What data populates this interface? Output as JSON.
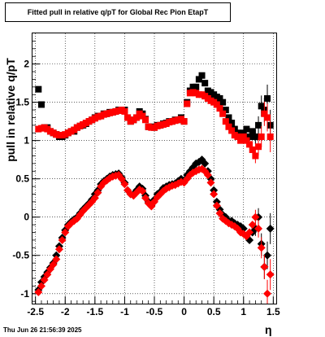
{
  "chart_data": {
    "type": "scatter",
    "title": "Fitted pull in relative q/pT for Global Rec Pion EtapT",
    "xlabel": "η",
    "ylabel": "pull in relative q/pT",
    "xlim": [
      -2.55,
      1.55
    ],
    "ylim": [
      -1.13,
      2.4
    ],
    "x_ticks": [
      "-2.5",
      "-2",
      "-1.5",
      "-1",
      "-0.5",
      "0",
      "0.5",
      "1",
      "1.5"
    ],
    "y_ticks": [
      "-1",
      "-0.5",
      "0",
      "0.5",
      "1",
      "1.5",
      "2"
    ],
    "x_tick_values": [
      -2.5,
      -2,
      -1.5,
      -1,
      -0.5,
      0,
      0.5,
      1,
      1.5
    ],
    "y_tick_values": [
      -1,
      -0.5,
      0,
      0.5,
      1,
      1.5,
      2
    ],
    "grid": true,
    "legend": "none",
    "date_stamp": "Thu Jun 26 21:56:39 2025",
    "colors": {
      "series_black": "#000000",
      "series_red": "#ff0000"
    },
    "series": [
      {
        "marker": "square",
        "color": "#000000",
        "x": [
          -2.45,
          -2.4,
          -2.35,
          -2.3,
          -2.25,
          -2.2,
          -2.15,
          -2.1,
          -2.05,
          -2.0,
          -1.95,
          -1.9,
          -1.85,
          -1.8,
          -1.75,
          -1.7,
          -1.65,
          -1.6,
          -1.55,
          -1.5,
          -1.45,
          -1.4,
          -1.35,
          -1.3,
          -1.25,
          -1.2,
          -1.15,
          -1.1,
          -1.05,
          -1.0,
          -0.95,
          -0.9,
          -0.85,
          -0.8,
          -0.75,
          -0.7,
          -0.65,
          -0.6,
          -0.55,
          -0.5,
          -0.45,
          -0.4,
          -0.35,
          -0.3,
          -0.25,
          -0.2,
          -0.15,
          -0.1,
          -0.05,
          0.0,
          0.05,
          0.1,
          0.15,
          0.2,
          0.25,
          0.3,
          0.35,
          0.4,
          0.45,
          0.5,
          0.55,
          0.6,
          0.65,
          0.7,
          0.75,
          0.8,
          0.85,
          0.9,
          0.95,
          1.0,
          1.05,
          1.1,
          1.15,
          1.2,
          1.25,
          1.3,
          1.35,
          1.4,
          1.45
        ],
        "y": [
          1.67,
          1.47,
          1.17,
          1.17,
          1.12,
          1.1,
          1.08,
          1.05,
          1.05,
          1.07,
          1.1,
          1.12,
          1.12,
          1.17,
          1.19,
          1.2,
          1.22,
          1.25,
          1.27,
          1.3,
          1.32,
          1.32,
          1.35,
          1.35,
          1.37,
          1.37,
          1.38,
          1.4,
          1.4,
          1.4,
          1.3,
          1.25,
          1.27,
          1.3,
          1.38,
          1.35,
          1.28,
          1.18,
          1.18,
          1.17,
          1.2,
          1.2,
          1.22,
          1.23,
          1.25,
          1.25,
          1.27,
          1.27,
          1.3,
          1.25,
          1.5,
          1.65,
          1.7,
          1.7,
          1.8,
          1.85,
          1.75,
          1.65,
          1.63,
          1.6,
          1.57,
          1.55,
          1.5,
          1.4,
          1.3,
          1.23,
          1.15,
          1.1,
          1.07,
          1.1,
          1.15,
          1.05,
          1.12,
          1.05,
          1.2,
          1.45,
          1.4,
          1.55,
          1.2
        ]
      },
      {
        "marker": "square",
        "color": "#ff0000",
        "x": [
          -2.45,
          -2.4,
          -2.35,
          -2.3,
          -2.25,
          -2.2,
          -2.15,
          -2.1,
          -2.05,
          -2.0,
          -1.95,
          -1.9,
          -1.85,
          -1.8,
          -1.75,
          -1.7,
          -1.65,
          -1.6,
          -1.55,
          -1.5,
          -1.45,
          -1.4,
          -1.35,
          -1.3,
          -1.25,
          -1.2,
          -1.15,
          -1.1,
          -1.05,
          -1.0,
          -0.95,
          -0.9,
          -0.85,
          -0.8,
          -0.75,
          -0.7,
          -0.65,
          -0.6,
          -0.55,
          -0.5,
          -0.45,
          -0.4,
          -0.35,
          -0.3,
          -0.25,
          -0.2,
          -0.15,
          -0.1,
          -0.05,
          0.0,
          0.05,
          0.1,
          0.15,
          0.2,
          0.25,
          0.3,
          0.35,
          0.4,
          0.45,
          0.5,
          0.55,
          0.6,
          0.65,
          0.7,
          0.75,
          0.8,
          0.85,
          0.9,
          0.95,
          1.0,
          1.05,
          1.1,
          1.15,
          1.2,
          1.25,
          1.3,
          1.35,
          1.4,
          1.45
        ],
        "y": [
          1.15,
          1.16,
          1.17,
          1.15,
          1.12,
          1.1,
          1.08,
          1.07,
          1.07,
          1.08,
          1.1,
          1.12,
          1.14,
          1.17,
          1.19,
          1.21,
          1.23,
          1.25,
          1.27,
          1.29,
          1.31,
          1.32,
          1.34,
          1.35,
          1.36,
          1.37,
          1.38,
          1.39,
          1.4,
          1.38,
          1.3,
          1.25,
          1.27,
          1.3,
          1.35,
          1.32,
          1.27,
          1.18,
          1.17,
          1.17,
          1.19,
          1.2,
          1.21,
          1.22,
          1.24,
          1.25,
          1.26,
          1.27,
          1.28,
          1.25,
          1.48,
          1.62,
          1.63,
          1.62,
          1.6,
          1.6,
          1.58,
          1.55,
          1.52,
          1.5,
          1.47,
          1.42,
          1.35,
          1.25,
          1.18,
          1.13,
          1.07,
          1.05,
          1.0,
          1.05,
          1.0,
          0.95,
          0.88,
          0.8,
          0.92,
          1.05,
          1.35,
          1.3,
          1.05
        ]
      },
      {
        "marker": "diamond",
        "color": "#000000",
        "x": [
          -2.45,
          -2.4,
          -2.35,
          -2.3,
          -2.25,
          -2.2,
          -2.15,
          -2.1,
          -2.05,
          -2.0,
          -1.95,
          -1.9,
          -1.85,
          -1.8,
          -1.75,
          -1.7,
          -1.65,
          -1.6,
          -1.55,
          -1.5,
          -1.45,
          -1.4,
          -1.35,
          -1.3,
          -1.25,
          -1.2,
          -1.15,
          -1.1,
          -1.05,
          -1.0,
          -0.95,
          -0.9,
          -0.85,
          -0.8,
          -0.75,
          -0.7,
          -0.65,
          -0.6,
          -0.55,
          -0.5,
          -0.45,
          -0.4,
          -0.35,
          -0.3,
          -0.25,
          -0.2,
          -0.15,
          -0.1,
          -0.05,
          0.0,
          0.05,
          0.1,
          0.15,
          0.2,
          0.25,
          0.3,
          0.35,
          0.4,
          0.45,
          0.5,
          0.55,
          0.6,
          0.65,
          0.7,
          0.75,
          0.8,
          0.85,
          0.9,
          0.95,
          1.0,
          1.05,
          1.1,
          1.15,
          1.2,
          1.25,
          1.3,
          1.35,
          1.4,
          1.45
        ],
        "y": [
          -0.95,
          -0.85,
          -0.78,
          -0.72,
          -0.66,
          -0.6,
          -0.5,
          -0.38,
          -0.27,
          -0.17,
          -0.1,
          -0.06,
          -0.03,
          0.0,
          0.05,
          0.1,
          0.14,
          0.18,
          0.23,
          0.3,
          0.35,
          0.43,
          0.47,
          0.5,
          0.53,
          0.55,
          0.56,
          0.57,
          0.52,
          0.45,
          0.35,
          0.3,
          0.3,
          0.35,
          0.4,
          0.37,
          0.28,
          0.2,
          0.15,
          0.23,
          0.3,
          0.33,
          0.38,
          0.4,
          0.42,
          0.43,
          0.44,
          0.47,
          0.5,
          0.48,
          0.55,
          0.6,
          0.65,
          0.7,
          0.72,
          0.75,
          0.7,
          0.6,
          0.5,
          0.35,
          0.2,
          0.1,
          0.03,
          0.0,
          -0.05,
          -0.05,
          -0.08,
          -0.1,
          -0.12,
          -0.15,
          -0.25,
          -0.3,
          -0.2,
          -0.15,
          0.0,
          -0.35,
          -0.65,
          -0.5,
          -0.15
        ]
      },
      {
        "marker": "diamond",
        "color": "#ff0000",
        "x": [
          -2.45,
          -2.4,
          -2.35,
          -2.3,
          -2.25,
          -2.2,
          -2.15,
          -2.1,
          -2.05,
          -2.0,
          -1.95,
          -1.9,
          -1.85,
          -1.8,
          -1.75,
          -1.7,
          -1.65,
          -1.6,
          -1.55,
          -1.5,
          -1.45,
          -1.4,
          -1.35,
          -1.3,
          -1.25,
          -1.2,
          -1.15,
          -1.1,
          -1.05,
          -1.0,
          -0.95,
          -0.9,
          -0.85,
          -0.8,
          -0.75,
          -0.7,
          -0.65,
          -0.6,
          -0.55,
          -0.5,
          -0.45,
          -0.4,
          -0.35,
          -0.3,
          -0.25,
          -0.2,
          -0.15,
          -0.1,
          -0.05,
          0.0,
          0.05,
          0.1,
          0.15,
          0.2,
          0.25,
          0.3,
          0.35,
          0.4,
          0.45,
          0.5,
          0.55,
          0.6,
          0.65,
          0.7,
          0.75,
          0.8,
          0.85,
          0.9,
          0.95,
          1.0,
          1.05,
          1.1,
          1.15,
          1.2,
          1.25,
          1.3,
          1.35,
          1.4,
          1.45
        ],
        "y": [
          -0.98,
          -0.9,
          -0.82,
          -0.75,
          -0.68,
          -0.62,
          -0.55,
          -0.42,
          -0.3,
          -0.2,
          -0.12,
          -0.08,
          -0.05,
          -0.02,
          0.03,
          0.08,
          0.12,
          0.16,
          0.2,
          0.25,
          0.32,
          0.4,
          0.45,
          0.48,
          0.51,
          0.53,
          0.54,
          0.55,
          0.5,
          0.43,
          0.35,
          0.3,
          0.28,
          0.32,
          0.36,
          0.34,
          0.25,
          0.18,
          0.14,
          0.2,
          0.26,
          0.3,
          0.34,
          0.37,
          0.39,
          0.41,
          0.42,
          0.44,
          0.46,
          0.45,
          0.5,
          0.55,
          0.58,
          0.6,
          0.62,
          0.63,
          0.6,
          0.55,
          0.45,
          0.3,
          0.15,
          0.05,
          -0.02,
          -0.05,
          -0.08,
          -0.1,
          -0.12,
          -0.15,
          -0.2,
          -0.22,
          -0.25,
          -0.2,
          -0.1,
          0.0,
          -0.15,
          -0.4,
          -0.65,
          -1.0,
          -0.75
        ]
      }
    ]
  }
}
